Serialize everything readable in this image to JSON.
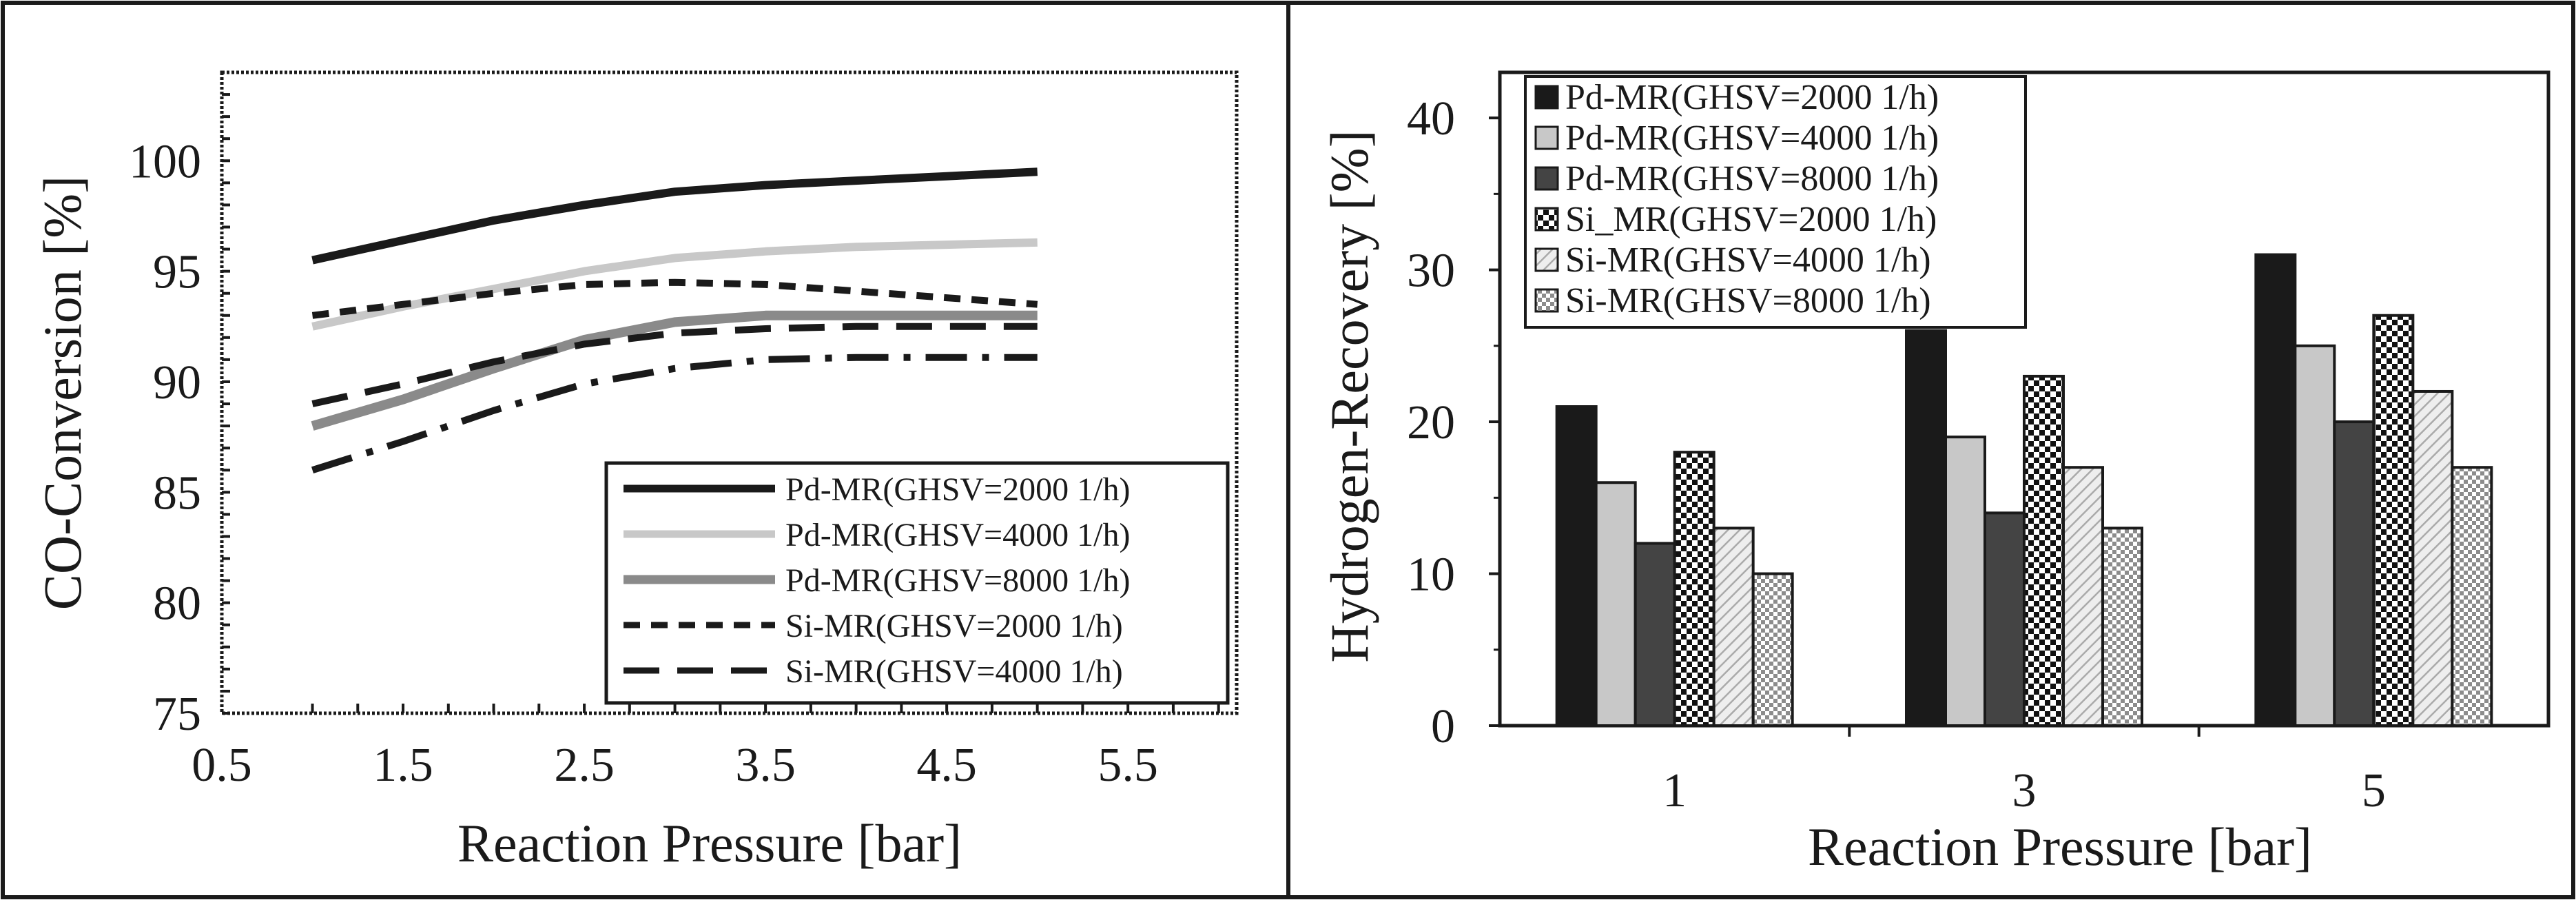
{
  "chart_data": [
    {
      "type": "line",
      "xlabel": "Reaction Pressure [bar]",
      "ylabel": "CO-Conversion [%]",
      "xlim": [
        0.5,
        6.1
      ],
      "ylim": [
        75,
        104
      ],
      "xticks": [
        "0.5",
        "1.5",
        "2.5",
        "3.5",
        "4.5",
        "5.5"
      ],
      "yticks": [
        "75",
        "80",
        "85",
        "90",
        "95",
        "100"
      ],
      "legend_position": "bottom-right",
      "series": [
        {
          "name": "Pd-MR(GHSV=2000 1/h)",
          "style": "solid",
          "color": "#1a1a1a",
          "x": [
            1,
            1.5,
            2,
            2.5,
            3,
            3.5,
            4,
            4.5,
            5
          ],
          "y": [
            95.5,
            96.4,
            97.3,
            98.0,
            98.6,
            98.9,
            99.1,
            99.3,
            99.5
          ]
        },
        {
          "name": "Pd-MR(GHSV=4000 1/h)",
          "style": "solid",
          "color": "#c8c8c8",
          "x": [
            1,
            1.5,
            2,
            2.5,
            3,
            3.5,
            4,
            4.5,
            5
          ],
          "y": [
            92.5,
            93.4,
            94.2,
            95.0,
            95.6,
            95.9,
            96.1,
            96.2,
            96.3
          ]
        },
        {
          "name": "Pd-MR(GHSV=8000 1/h)",
          "style": "solid",
          "color": "#8a8a8a",
          "x": [
            1,
            1.5,
            2,
            2.5,
            3,
            3.5,
            4,
            4.5,
            5
          ],
          "y": [
            88.0,
            89.2,
            90.6,
            91.9,
            92.7,
            93.0,
            93.0,
            93.0,
            93.0
          ]
        },
        {
          "name": "Si-MR(GHSV=2000 1/h)",
          "style": "dashed",
          "color": "#1a1a1a",
          "x": [
            1,
            1.5,
            2,
            2.5,
            3,
            3.5,
            4,
            4.5,
            5
          ],
          "y": [
            93.0,
            93.5,
            94.0,
            94.4,
            94.5,
            94.4,
            94.1,
            93.8,
            93.5
          ]
        },
        {
          "name": "Si-MR(GHSV=4000 1/h)",
          "style": "longdash",
          "color": "#1a1a1a",
          "x": [
            1,
            1.5,
            2,
            2.5,
            3,
            3.5,
            4,
            4.5,
            5
          ],
          "y": [
            89.0,
            89.9,
            90.9,
            91.7,
            92.2,
            92.4,
            92.5,
            92.5,
            92.5
          ]
        },
        {
          "name": "",
          "style": "dashdot",
          "color": "#1a1a1a",
          "x": [
            1,
            1.5,
            2,
            2.5,
            3,
            3.5,
            4,
            4.5,
            5
          ],
          "y": [
            86.0,
            87.3,
            88.7,
            89.9,
            90.6,
            91.0,
            91.1,
            91.1,
            91.1
          ]
        }
      ]
    },
    {
      "type": "bar",
      "xlabel": "Reaction Pressure [bar]",
      "ylabel": "Hydrogen-Recovery [%]",
      "ylim": [
        0,
        43
      ],
      "yticks": [
        "0",
        "10",
        "20",
        "30",
        "40"
      ],
      "categories": [
        "1",
        "3",
        "5"
      ],
      "legend_position": "top-left",
      "series": [
        {
          "name": "Pd-MR(GHSV=2000 1/h)",
          "fill": "#1a1a1a",
          "values": [
            21,
            26,
            31
          ]
        },
        {
          "name": "Pd-MR(GHSV=4000 1/h)",
          "fill": "#c8c8c8",
          "values": [
            16,
            19,
            25
          ]
        },
        {
          "name": "Pd-MR(GHSV=8000 1/h)",
          "fill": "#444444",
          "values": [
            12,
            14,
            20
          ]
        },
        {
          "name": "Si_MR(GHSV=2000 1/h)",
          "fill": "checker-dark",
          "values": [
            18,
            23,
            27
          ]
        },
        {
          "name": "Si-MR(GHSV=4000 1/h)",
          "fill": "hatch-light",
          "values": [
            13,
            17,
            22
          ]
        },
        {
          "name": "Si-MR(GHSV=8000 1/h)",
          "fill": "checker-light",
          "values": [
            10,
            13,
            17
          ]
        }
      ]
    }
  ]
}
